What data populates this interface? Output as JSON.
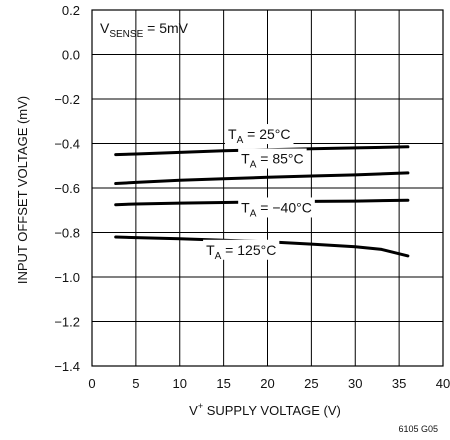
{
  "chart_data": {
    "type": "line",
    "xlabel": "V⁺ SUPPLY VOLTAGE (V)",
    "xlabel_parts": {
      "main": "V",
      "sup": "+",
      "rest": " SUPPLY VOLTAGE (V)"
    },
    "ylabel": "INPUT OFFSET VOLTAGE (mV)",
    "xlim": [
      0,
      40
    ],
    "ylim": [
      -1.4,
      0.2
    ],
    "x_ticks": [
      "0",
      "5",
      "10",
      "15",
      "20",
      "25",
      "30",
      "35",
      "40"
    ],
    "y_ticks": [
      "0.2",
      "0.0",
      "−0.2",
      "−0.4",
      "−0.6",
      "−0.8",
      "−1.0",
      "−1.2",
      "−1.4"
    ],
    "x_tick_values": [
      0,
      5,
      10,
      15,
      20,
      25,
      30,
      35,
      40
    ],
    "y_tick_values": [
      0.2,
      0.0,
      -0.2,
      -0.4,
      -0.6,
      -0.8,
      -1.0,
      -1.2,
      -1.4
    ],
    "grid": true,
    "annotation": {
      "main": "V",
      "sub": "SENSE",
      "rest": " = 5mV"
    },
    "figure_id": "6105 G05",
    "series": [
      {
        "label_main": "T",
        "label_sub": "A",
        "label_rest": " = 25°C",
        "label_at": [
          15.5,
          -0.38
        ],
        "x": [
          2.7,
          5,
          10,
          15,
          20,
          25,
          30,
          36
        ],
        "y": [
          -0.45,
          -0.447,
          -0.44,
          -0.433,
          -0.428,
          -0.424,
          -0.42,
          -0.415
        ]
      },
      {
        "label_main": "T",
        "label_sub": "A",
        "label_rest": " = 85°C",
        "label_at": [
          17,
          -0.49
        ],
        "x": [
          2.7,
          5,
          10,
          15,
          20,
          25,
          30,
          36
        ],
        "y": [
          -0.58,
          -0.575,
          -0.565,
          -0.558,
          -0.552,
          -0.546,
          -0.541,
          -0.532
        ]
      },
      {
        "label_main": "T",
        "label_sub": "A",
        "label_rest": " = −40°C",
        "label_at": [
          17,
          -0.71
        ],
        "x": [
          2.7,
          5,
          10,
          15,
          20,
          25,
          30,
          36
        ],
        "y": [
          -0.675,
          -0.672,
          -0.668,
          -0.665,
          -0.662,
          -0.66,
          -0.659,
          -0.655
        ]
      },
      {
        "label_main": "T",
        "label_sub": "A",
        "label_rest": " = 125°C",
        "label_at": [
          13,
          -0.9
        ],
        "x": [
          2.7,
          5,
          10,
          15,
          20,
          25,
          30,
          33,
          36
        ],
        "y": [
          -0.82,
          -0.823,
          -0.828,
          -0.835,
          -0.842,
          -0.852,
          -0.864,
          -0.876,
          -0.905
        ]
      }
    ]
  }
}
